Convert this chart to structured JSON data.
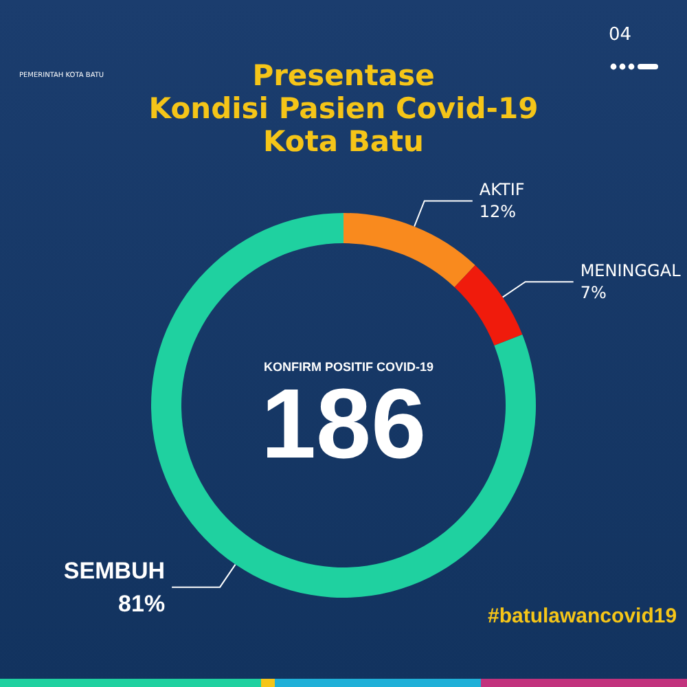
{
  "chart_data": {
    "type": "donut",
    "title": "Presentase\nKondisi Pasien Covid-19\nKota Batu",
    "categories": [
      "AKTIF",
      "MENINGGAL",
      "SEMBUH"
    ],
    "values": [
      12,
      7,
      81
    ],
    "value_labels": [
      "12%",
      "7%",
      "81%"
    ],
    "colors": [
      "#f98a1e",
      "#f01b0c",
      "#1fd1a0"
    ],
    "legend": false,
    "annotations": [
      "KONFIRM POSITIF COVID-19",
      "186",
      "PEMERINTAH KOTA BATU",
      "04",
      "#batulawancovid19"
    ]
  }
}
